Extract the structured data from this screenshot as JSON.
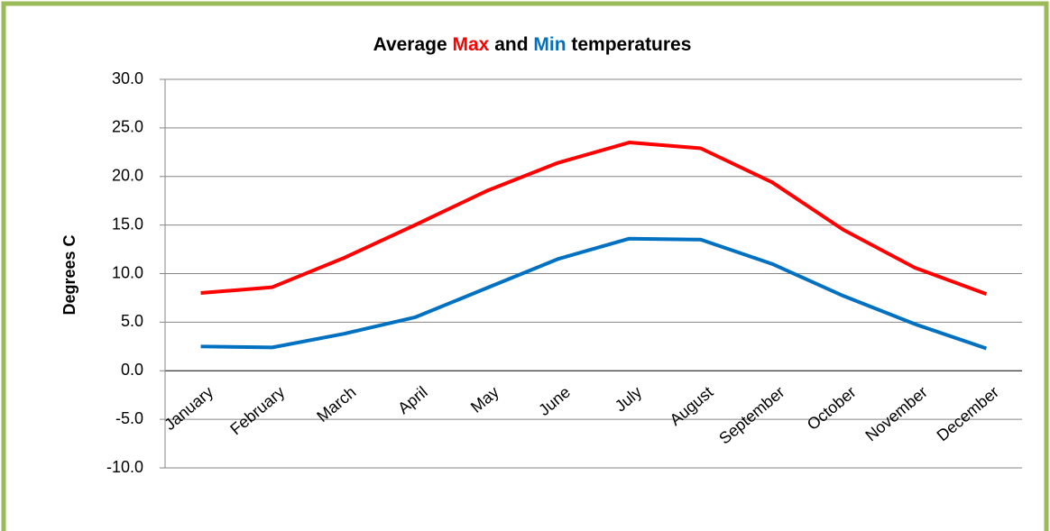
{
  "chart_data": {
    "type": "line",
    "title": [
      "Average ",
      "Max",
      " and ",
      "Min",
      " temperatures"
    ],
    "y_label": "Degrees C",
    "categories": [
      "January",
      "February",
      "March",
      "April",
      "May",
      "June",
      "July",
      "August",
      "September",
      "October",
      "November",
      "December"
    ],
    "series": [
      {
        "color": "#ff0000",
        "values": [
          8.0,
          8.6,
          11.6,
          15.0,
          18.5,
          21.4,
          23.5,
          22.9,
          19.4,
          14.5,
          10.6,
          7.9
        ]
      },
      {
        "color": "#0070c0",
        "values": [
          2.5,
          2.4,
          3.8,
          5.5,
          8.5,
          11.5,
          13.6,
          13.5,
          11.0,
          7.7,
          4.8,
          2.3
        ]
      }
    ],
    "ylim": [
      -10,
      30
    ],
    "yticks": [
      {
        "value": -10,
        "label": "-10.0"
      },
      {
        "value": -5,
        "label": "-5.0"
      },
      {
        "value": 0,
        "label": "0.0"
      },
      {
        "value": 5,
        "label": "5.0"
      },
      {
        "value": 10,
        "label": "10.0"
      },
      {
        "value": 15,
        "label": "15.0"
      },
      {
        "value": 20,
        "label": "20.0"
      },
      {
        "value": 25,
        "label": "25.0"
      },
      {
        "value": 30,
        "label": "30.0"
      }
    ],
    "grid": true
  }
}
